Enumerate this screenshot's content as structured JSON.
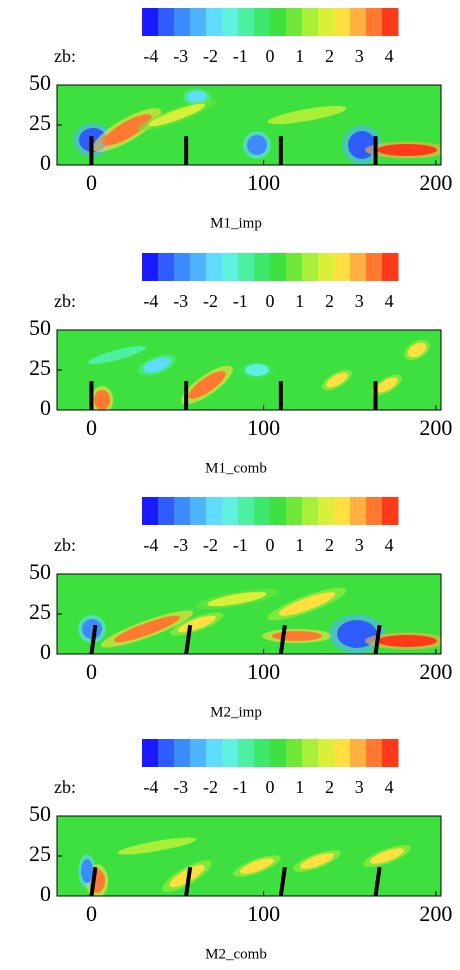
{
  "chart_data": [
    {
      "type": "contour",
      "caption": "M1_imp",
      "colorbar_label": "zb:",
      "xlim": [
        -20,
        203
      ],
      "ylim": [
        0,
        50
      ],
      "xticks": [
        0,
        100,
        200
      ],
      "yticks": [
        0,
        25,
        50
      ],
      "colorbar_lim": [
        -4.3,
        4.3
      ],
      "colorbar_ticks": [
        -4,
        -3,
        -2,
        -1,
        0,
        1,
        2,
        3,
        4
      ],
      "piers": {
        "x": [
          0,
          55,
          110,
          165
        ],
        "height": 18,
        "lean": 0
      }
    },
    {
      "type": "contour",
      "caption": "M1_comb",
      "colorbar_label": "zb:",
      "xlim": [
        -20,
        203
      ],
      "ylim": [
        0,
        50
      ],
      "xticks": [
        0,
        100,
        200
      ],
      "yticks": [
        0,
        25,
        50
      ],
      "colorbar_lim": [
        -4.3,
        4.3
      ],
      "colorbar_ticks": [
        -4,
        -3,
        -2,
        -1,
        0,
        1,
        2,
        3,
        4
      ],
      "piers": {
        "x": [
          0,
          55,
          110,
          165
        ],
        "height": 18,
        "lean": 0
      }
    },
    {
      "type": "contour",
      "caption": "M2_imp",
      "colorbar_label": "zb:",
      "xlim": [
        -20,
        203
      ],
      "ylim": [
        0,
        50
      ],
      "xticks": [
        0,
        100,
        200
      ],
      "yticks": [
        0,
        25,
        50
      ],
      "colorbar_lim": [
        -4.3,
        4.3
      ],
      "colorbar_ticks": [
        -4,
        -3,
        -2,
        -1,
        0,
        1,
        2,
        3,
        4
      ],
      "piers": {
        "x": [
          0,
          55,
          110,
          165
        ],
        "height": 18,
        "lean": 4
      }
    },
    {
      "type": "contour",
      "caption": "M2_comb",
      "colorbar_label": "zb:",
      "xlim": [
        -20,
        203
      ],
      "ylim": [
        0,
        50
      ],
      "xticks": [
        0,
        100,
        200
      ],
      "yticks": [
        0,
        25,
        50
      ],
      "colorbar_lim": [
        -4.3,
        4.3
      ],
      "colorbar_ticks": [
        -4,
        -3,
        -2,
        -1,
        0,
        1,
        2,
        3,
        4
      ],
      "piers": {
        "x": [
          0,
          55,
          110,
          165
        ],
        "height": 18,
        "lean": 4
      }
    }
  ],
  "colormap": [
    "#1a1aff",
    "#2e5cff",
    "#3d8cff",
    "#4fb4ff",
    "#5fdcff",
    "#5ff0e0",
    "#4cf0a0",
    "#3ee86a",
    "#3ee040",
    "#70e83a",
    "#a8ef3a",
    "#d8f03a",
    "#ffe040",
    "#ffb040",
    "#ff7a30",
    "#ff3a1a"
  ],
  "field_color": "#3ee040"
}
